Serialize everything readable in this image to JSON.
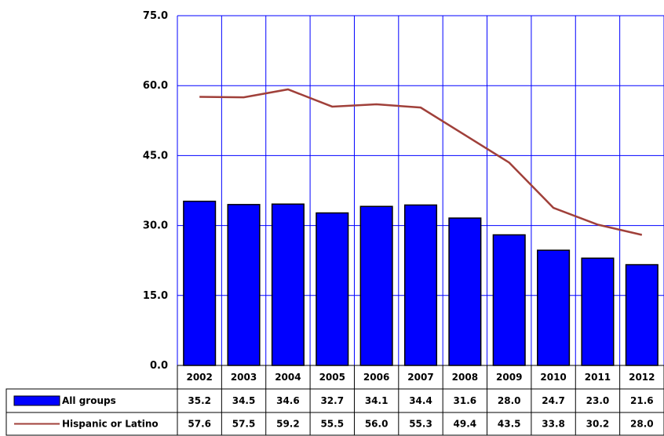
{
  "chart_data": {
    "type": "bar",
    "categories": [
      "2002",
      "2003",
      "2004",
      "2005",
      "2006",
      "2007",
      "2008",
      "2009",
      "2010",
      "2011",
      "2012"
    ],
    "series": [
      {
        "name": "All groups",
        "type": "bar",
        "color": "#0000ff",
        "values": [
          35.2,
          34.5,
          34.6,
          32.7,
          34.1,
          34.4,
          31.6,
          28.0,
          24.7,
          23.0,
          21.6
        ]
      },
      {
        "name": "Hispanic or Latino",
        "type": "line",
        "color": "#a0403a",
        "values": [
          57.6,
          57.5,
          59.2,
          55.5,
          56.0,
          55.3,
          49.4,
          43.5,
          33.8,
          30.2,
          28.0
        ]
      }
    ],
    "ylim": [
      0,
      75
    ],
    "yticks": [
      "0.0",
      "15.0",
      "30.0",
      "45.0",
      "60.0",
      "75.0"
    ],
    "grid": true,
    "grid_color": "#0000ff",
    "data_table": true
  }
}
